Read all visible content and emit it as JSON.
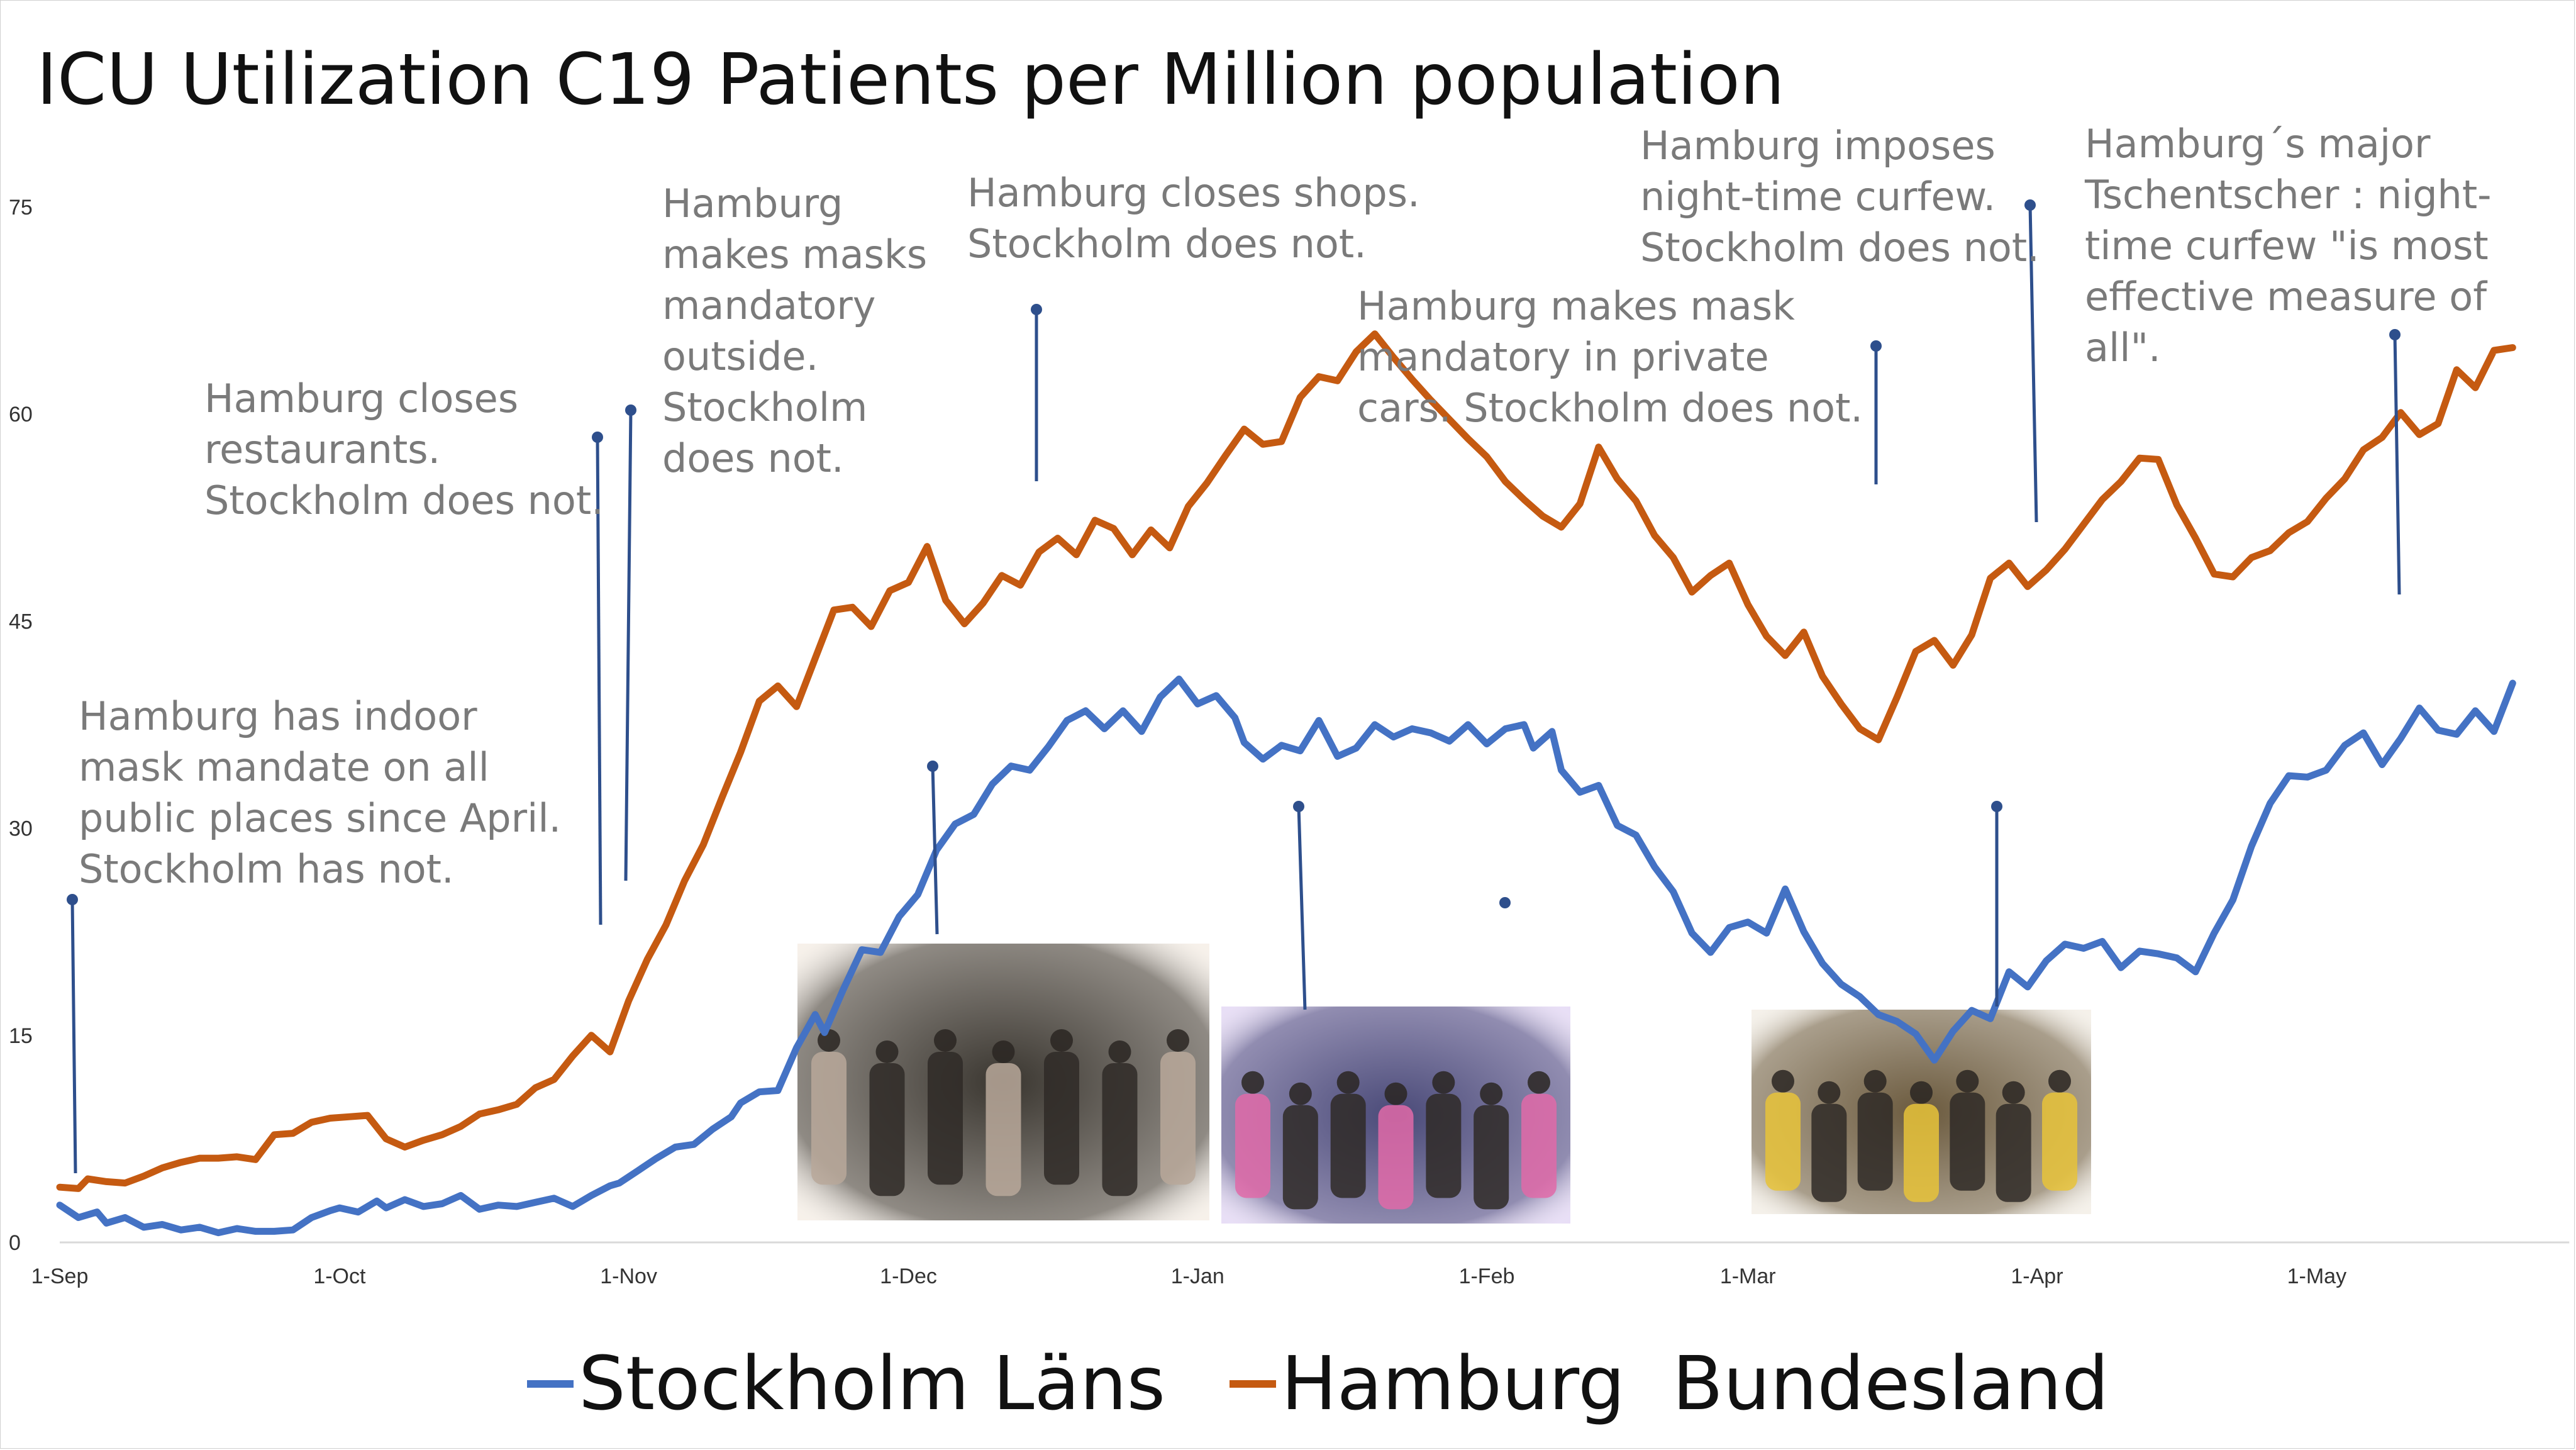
{
  "chart_data": {
    "type": "line",
    "title": "ICU Utilization C19 Patients per Million population",
    "xlabel": "",
    "ylabel": "",
    "ylim": [
      0,
      75
    ],
    "yticks": [
      0,
      15,
      30,
      45,
      60,
      75
    ],
    "x_range_days": [
      0,
      263
    ],
    "xtick_labels": [
      {
        "day": 0,
        "label": "1-Sep"
      },
      {
        "day": 30,
        "label": "1-Oct"
      },
      {
        "day": 61,
        "label": "1-Nov"
      },
      {
        "day": 91,
        "label": "1-Dec"
      },
      {
        "day": 122,
        "label": "1-Jan"
      },
      {
        "day": 153,
        "label": "1-Feb"
      },
      {
        "day": 181,
        "label": "1-Mar"
      },
      {
        "day": 212,
        "label": "1-Apr"
      },
      {
        "day": 242,
        "label": "1-May"
      }
    ],
    "grid": false,
    "legend_position": "bottom-center",
    "series": [
      {
        "name": "Stockholm Läns",
        "color": "#4472c4",
        "points": [
          [
            0,
            2.7
          ],
          [
            2,
            1.8
          ],
          [
            4,
            2.2
          ],
          [
            5,
            1.4
          ],
          [
            7,
            1.8
          ],
          [
            9,
            1.1
          ],
          [
            11,
            1.3
          ],
          [
            13,
            0.9
          ],
          [
            15,
            1.1
          ],
          [
            17,
            0.7
          ],
          [
            19,
            1.0
          ],
          [
            21,
            0.8
          ],
          [
            23,
            0.8
          ],
          [
            25,
            0.9
          ],
          [
            27,
            1.8
          ],
          [
            29,
            2.3
          ],
          [
            30,
            2.5
          ],
          [
            32,
            2.2
          ],
          [
            34,
            3.0
          ],
          [
            35,
            2.5
          ],
          [
            37,
            3.1
          ],
          [
            39,
            2.6
          ],
          [
            41,
            2.8
          ],
          [
            43,
            3.4
          ],
          [
            45,
            2.4
          ],
          [
            47,
            2.7
          ],
          [
            49,
            2.6
          ],
          [
            51,
            2.9
          ],
          [
            53,
            3.2
          ],
          [
            55,
            2.6
          ],
          [
            57,
            3.4
          ],
          [
            59,
            4.1
          ],
          [
            60,
            4.3
          ],
          [
            62,
            5.2
          ],
          [
            64,
            6.1
          ],
          [
            66,
            6.9
          ],
          [
            68,
            7.1
          ],
          [
            70,
            8.2
          ],
          [
            72,
            9.1
          ],
          [
            73,
            10.1
          ],
          [
            75,
            10.9
          ],
          [
            77,
            11.0
          ],
          [
            79,
            14.1
          ],
          [
            81,
            16.5
          ],
          [
            82,
            15.2
          ],
          [
            84,
            18.3
          ],
          [
            86,
            21.2
          ],
          [
            88,
            21.0
          ],
          [
            90,
            23.6
          ],
          [
            92,
            25.2
          ],
          [
            94,
            28.4
          ],
          [
            96,
            30.3
          ],
          [
            98,
            31.0
          ],
          [
            100,
            33.2
          ],
          [
            102,
            34.5
          ],
          [
            104,
            34.2
          ],
          [
            106,
            35.9
          ],
          [
            108,
            37.8
          ],
          [
            110,
            38.5
          ],
          [
            112,
            37.2
          ],
          [
            114,
            38.5
          ],
          [
            116,
            37.0
          ],
          [
            118,
            39.5
          ],
          [
            120,
            40.8
          ],
          [
            122,
            39.0
          ],
          [
            124,
            39.6
          ],
          [
            126,
            38.0
          ],
          [
            127,
            36.2
          ],
          [
            129,
            35.0
          ],
          [
            131,
            36.0
          ],
          [
            133,
            35.6
          ],
          [
            135,
            37.8
          ],
          [
            137,
            35.2
          ],
          [
            139,
            35.8
          ],
          [
            141,
            37.5
          ],
          [
            143,
            36.6
          ],
          [
            145,
            37.2
          ],
          [
            147,
            36.9
          ],
          [
            149,
            36.3
          ],
          [
            151,
            37.5
          ],
          [
            153,
            36.1
          ],
          [
            155,
            37.2
          ],
          [
            157,
            37.5
          ],
          [
            158,
            35.8
          ],
          [
            160,
            37.0
          ],
          [
            161,
            34.2
          ],
          [
            163,
            32.6
          ],
          [
            165,
            33.1
          ],
          [
            167,
            30.2
          ],
          [
            169,
            29.5
          ],
          [
            171,
            27.2
          ],
          [
            173,
            25.4
          ],
          [
            175,
            22.4
          ],
          [
            177,
            21.0
          ],
          [
            179,
            22.8
          ],
          [
            181,
            23.2
          ],
          [
            183,
            22.4
          ],
          [
            185,
            25.6
          ],
          [
            187,
            22.5
          ],
          [
            189,
            20.2
          ],
          [
            191,
            18.7
          ],
          [
            193,
            17.8
          ],
          [
            195,
            16.5
          ],
          [
            197,
            16.0
          ],
          [
            199,
            15.1
          ],
          [
            201,
            13.2
          ],
          [
            203,
            15.3
          ],
          [
            205,
            16.8
          ],
          [
            207,
            16.2
          ],
          [
            209,
            19.6
          ],
          [
            211,
            18.5
          ],
          [
            213,
            20.4
          ],
          [
            215,
            21.6
          ],
          [
            217,
            21.3
          ],
          [
            219,
            21.8
          ],
          [
            221,
            19.9
          ],
          [
            223,
            21.1
          ],
          [
            225,
            20.9
          ],
          [
            227,
            20.6
          ],
          [
            229,
            19.6
          ],
          [
            231,
            22.4
          ],
          [
            233,
            24.8
          ],
          [
            235,
            28.7
          ],
          [
            237,
            31.8
          ],
          [
            239,
            33.8
          ],
          [
            241,
            33.7
          ],
          [
            243,
            34.2
          ],
          [
            245,
            36.0
          ],
          [
            247,
            36.9
          ],
          [
            249,
            34.6
          ],
          [
            251,
            36.5
          ],
          [
            253,
            38.7
          ],
          [
            255,
            37.1
          ],
          [
            257,
            36.8
          ],
          [
            259,
            38.5
          ],
          [
            261,
            37.0
          ],
          [
            263,
            40.5
          ]
        ]
      },
      {
        "name": "Hamburg  Bundesland",
        "color": "#c55a11",
        "points": [
          [
            0,
            4.0
          ],
          [
            2,
            3.9
          ],
          [
            3,
            4.6
          ],
          [
            5,
            4.4
          ],
          [
            7,
            4.3
          ],
          [
            9,
            4.8
          ],
          [
            11,
            5.4
          ],
          [
            13,
            5.8
          ],
          [
            15,
            6.1
          ],
          [
            17,
            6.1
          ],
          [
            19,
            6.2
          ],
          [
            21,
            6.0
          ],
          [
            23,
            7.8
          ],
          [
            25,
            7.9
          ],
          [
            27,
            8.7
          ],
          [
            29,
            9.0
          ],
          [
            31,
            9.1
          ],
          [
            33,
            9.2
          ],
          [
            35,
            7.5
          ],
          [
            37,
            6.9
          ],
          [
            39,
            7.4
          ],
          [
            41,
            7.8
          ],
          [
            43,
            8.4
          ],
          [
            45,
            9.3
          ],
          [
            47,
            9.6
          ],
          [
            49,
            10.0
          ],
          [
            51,
            11.2
          ],
          [
            53,
            11.8
          ],
          [
            55,
            13.5
          ],
          [
            57,
            15.0
          ],
          [
            59,
            13.8
          ],
          [
            61,
            17.5
          ],
          [
            63,
            20.5
          ],
          [
            65,
            23.0
          ],
          [
            67,
            26.2
          ],
          [
            69,
            28.8
          ],
          [
            71,
            32.2
          ],
          [
            73,
            35.5
          ],
          [
            75,
            39.2
          ],
          [
            77,
            40.3
          ],
          [
            79,
            38.8
          ],
          [
            81,
            42.3
          ],
          [
            83,
            45.8
          ],
          [
            85,
            46.0
          ],
          [
            87,
            44.6
          ],
          [
            89,
            47.2
          ],
          [
            91,
            47.8
          ],
          [
            93,
            50.4
          ],
          [
            95,
            46.5
          ],
          [
            97,
            44.8
          ],
          [
            99,
            46.3
          ],
          [
            101,
            48.3
          ],
          [
            103,
            47.6
          ],
          [
            105,
            50.0
          ],
          [
            107,
            51.0
          ],
          [
            109,
            49.8
          ],
          [
            111,
            52.3
          ],
          [
            113,
            51.7
          ],
          [
            115,
            49.8
          ],
          [
            117,
            51.6
          ],
          [
            119,
            50.3
          ],
          [
            121,
            53.3
          ],
          [
            123,
            55.0
          ],
          [
            125,
            57.0
          ],
          [
            127,
            58.9
          ],
          [
            129,
            57.8
          ],
          [
            131,
            58.0
          ],
          [
            133,
            61.2
          ],
          [
            135,
            62.7
          ],
          [
            137,
            62.4
          ],
          [
            139,
            64.5
          ],
          [
            141,
            65.8
          ],
          [
            143,
            64.1
          ],
          [
            145,
            62.5
          ],
          [
            147,
            61.0
          ],
          [
            149,
            59.6
          ],
          [
            151,
            58.2
          ],
          [
            153,
            56.9
          ],
          [
            155,
            55.1
          ],
          [
            157,
            53.8
          ],
          [
            159,
            52.6
          ],
          [
            161,
            51.8
          ],
          [
            163,
            53.5
          ],
          [
            165,
            57.6
          ],
          [
            167,
            55.3
          ],
          [
            169,
            53.7
          ],
          [
            171,
            51.2
          ],
          [
            173,
            49.6
          ],
          [
            175,
            47.1
          ],
          [
            177,
            48.3
          ],
          [
            179,
            49.2
          ],
          [
            181,
            46.2
          ],
          [
            183,
            43.9
          ],
          [
            185,
            42.5
          ],
          [
            187,
            44.2
          ],
          [
            189,
            41.0
          ],
          [
            191,
            39.0
          ],
          [
            193,
            37.2
          ],
          [
            195,
            36.4
          ],
          [
            197,
            39.5
          ],
          [
            199,
            42.8
          ],
          [
            201,
            43.6
          ],
          [
            203,
            41.8
          ],
          [
            205,
            44.0
          ],
          [
            207,
            48.1
          ],
          [
            209,
            49.2
          ],
          [
            211,
            47.5
          ],
          [
            213,
            48.7
          ],
          [
            215,
            50.2
          ],
          [
            217,
            52.0
          ],
          [
            219,
            53.8
          ],
          [
            221,
            55.1
          ],
          [
            223,
            56.8
          ],
          [
            225,
            56.7
          ],
          [
            227,
            53.4
          ],
          [
            229,
            51.0
          ],
          [
            231,
            48.4
          ],
          [
            233,
            48.2
          ],
          [
            235,
            49.6
          ],
          [
            237,
            50.1
          ],
          [
            239,
            51.4
          ],
          [
            241,
            52.2
          ],
          [
            243,
            53.9
          ],
          [
            245,
            55.3
          ],
          [
            247,
            57.4
          ],
          [
            249,
            58.3
          ],
          [
            251,
            60.1
          ],
          [
            253,
            58.5
          ],
          [
            255,
            59.3
          ],
          [
            257,
            63.2
          ],
          [
            259,
            61.9
          ],
          [
            261,
            64.6
          ],
          [
            263,
            64.8
          ]
        ]
      }
    ],
    "annotations": [
      {
        "lines": [
          "Hamburg has indoor",
          "mask mandate on all",
          "public places since April.",
          "Stockholm has not."
        ]
      },
      {
        "lines": [
          "Hamburg closes",
          "restaurants.",
          "Stockholm does not."
        ]
      },
      {
        "lines": [
          "Hamburg",
          "makes masks",
          "mandatory",
          "outside.",
          "Stockholm",
          "does not."
        ]
      },
      {
        "lines": [
          "Hamburg closes shops.",
          "Stockholm does not."
        ]
      },
      {
        "lines": [
          "Hamburg makes mask",
          "mandatory in private",
          "cars. Stockholm does not."
        ]
      },
      {
        "lines": [
          "Hamburg imposes",
          "night-time curfew.",
          "Stockholm does not."
        ]
      },
      {
        "lines": [
          "Hamburg´s major",
          "Tschentscher : night-",
          "time curfew \"is most",
          "effective measure of",
          "all\"."
        ]
      }
    ],
    "photos": [
      {
        "name": "photo-christmas-shoppers"
      },
      {
        "name": "photo-crowded-plaza"
      },
      {
        "name": "photo-station-crowd"
      }
    ]
  }
}
